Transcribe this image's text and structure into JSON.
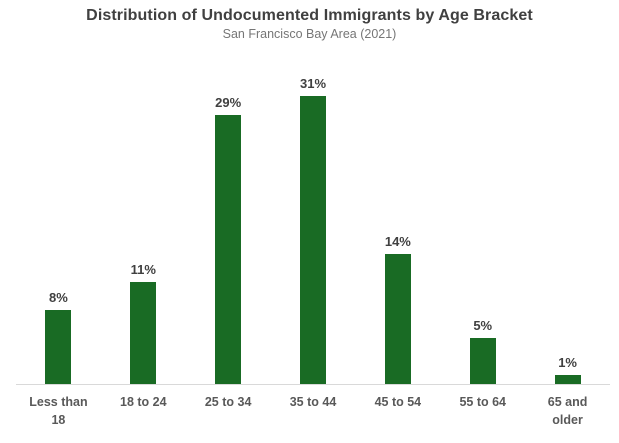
{
  "chart_data": {
    "type": "bar",
    "title": "Distribution of Undocumented Immigrants by Age Bracket",
    "subtitle": "San Francisco Bay Area (2021)",
    "categories": [
      "Less than 18",
      "18 to 24",
      "25 to 34",
      "35 to 44",
      "45 to 54",
      "55 to 64",
      "65 and older"
    ],
    "values": [
      8,
      11,
      29,
      31,
      14,
      5,
      1
    ],
    "value_labels": [
      "8%",
      "11%",
      "29%",
      "31%",
      "14%",
      "5%",
      "1%"
    ],
    "xlabel": "",
    "ylabel": "",
    "ylim": [
      0,
      35
    ],
    "grid": false,
    "legend": false,
    "bar_color": "#196B24",
    "title_color": "#404040",
    "subtitle_color": "#767676",
    "axis_label_color": "#595959",
    "value_label_color": "#404040",
    "baseline_color": "#d9d9d9"
  }
}
